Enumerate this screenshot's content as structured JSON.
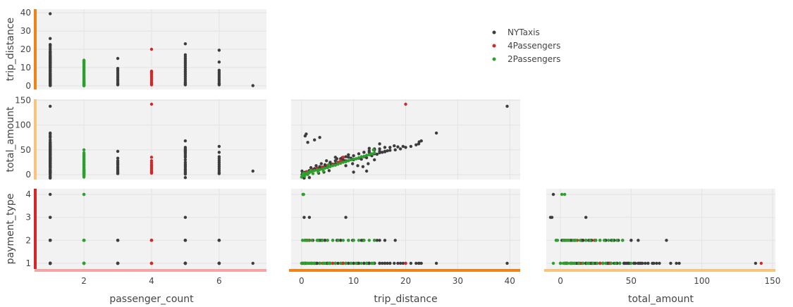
{
  "chart_data": {
    "type": "scatter",
    "title": "",
    "legend": {
      "placement": "top-right",
      "entries": [
        {
          "name": "NYTaxis",
          "color": "#3d3d3d"
        },
        {
          "name": "4Passengers",
          "color": "#d62728"
        },
        {
          "name": "2Passengers",
          "color": "#2ca02c"
        }
      ]
    },
    "dimensions": [
      {
        "key": "passenger_count",
        "label": "passenger_count",
        "range": [
          0.6,
          7.4
        ],
        "ticks": [
          2,
          4,
          6
        ],
        "bar_color": "#f4a6a6"
      },
      {
        "key": "trip_distance",
        "label": "trip_distance",
        "range": [
          -2,
          42
        ],
        "ticks": [
          0,
          10,
          20,
          30,
          40
        ],
        "bar_color": "#ee8417"
      },
      {
        "key": "total_amount",
        "label": "total_amount",
        "range": [
          -10,
          152
        ],
        "ticks": [
          0,
          50,
          100,
          150
        ],
        "bar_color": "#f6c47c"
      },
      {
        "key": "payment_type",
        "label": "payment_type",
        "range": [
          0.75,
          4.25
        ],
        "ticks": [
          1,
          2,
          3,
          4
        ],
        "bar_color": "#d62728"
      }
    ],
    "series": [
      {
        "name": "NYTaxis",
        "color": "#3d3d3d",
        "points": [
          [
            1,
            0.2,
            3,
            1
          ],
          [
            1,
            0.8,
            5,
            1
          ],
          [
            1,
            1.5,
            8,
            1
          ],
          [
            1,
            2.2,
            10,
            2
          ],
          [
            1,
            3,
            13,
            1
          ],
          [
            1,
            4,
            15,
            2
          ],
          [
            1,
            5,
            18,
            1
          ],
          [
            1,
            6,
            21,
            2
          ],
          [
            1,
            7,
            23,
            1
          ],
          [
            1,
            8,
            26,
            1
          ],
          [
            1,
            9,
            28,
            2
          ],
          [
            1,
            10,
            30,
            1
          ],
          [
            1,
            11,
            33,
            1
          ],
          [
            1,
            12,
            36,
            2
          ],
          [
            1,
            13,
            40,
            1
          ],
          [
            1,
            14,
            42,
            1
          ],
          [
            1,
            15,
            44,
            2
          ],
          [
            1,
            16,
            46,
            1
          ],
          [
            1,
            17,
            49,
            1
          ],
          [
            1,
            18,
            50,
            2
          ],
          [
            1,
            19,
            52,
            1
          ],
          [
            1,
            20,
            55,
            1
          ],
          [
            1,
            21,
            57,
            1
          ],
          [
            1,
            22,
            60,
            1
          ],
          [
            1,
            0.5,
            -7,
            3
          ],
          [
            1,
            0.3,
            -5,
            4
          ],
          [
            1,
            1.2,
            65,
            1
          ],
          [
            1,
            2.5,
            70,
            1
          ],
          [
            1,
            3.5,
            75,
            2
          ],
          [
            1,
            39.5,
            138,
            1
          ],
          [
            1,
            0.9,
            82,
            1
          ],
          [
            1,
            0.7,
            78,
            1
          ],
          [
            1,
            6.5,
            35,
            1
          ],
          [
            1,
            8.5,
            18,
            3
          ],
          [
            1,
            5.5,
            25,
            1
          ],
          [
            3,
            0.5,
            4,
            1
          ],
          [
            3,
            1.5,
            7,
            2
          ],
          [
            3,
            2.5,
            10,
            1
          ],
          [
            3,
            3.5,
            13,
            1
          ],
          [
            3,
            4.5,
            16,
            2
          ],
          [
            3,
            5.5,
            20,
            1
          ],
          [
            3,
            6.5,
            22,
            1
          ],
          [
            3,
            7.5,
            25,
            2
          ],
          [
            3,
            8.5,
            28,
            1
          ],
          [
            3,
            9.5,
            33,
            1
          ],
          [
            3,
            15,
            47,
            1
          ],
          [
            3,
            0.8,
            2,
            2
          ],
          [
            5,
            0.5,
            3,
            1
          ],
          [
            5,
            1,
            5,
            2
          ],
          [
            5,
            2,
            8,
            1
          ],
          [
            5,
            3,
            11,
            1
          ],
          [
            5,
            4,
            15,
            2
          ],
          [
            5,
            5,
            18,
            1
          ],
          [
            5,
            6,
            21,
            1
          ],
          [
            5,
            7,
            25,
            2
          ],
          [
            5,
            8,
            30,
            1
          ],
          [
            5,
            9,
            35,
            1
          ],
          [
            5,
            10,
            38,
            2
          ],
          [
            5,
            11,
            42,
            1
          ],
          [
            5,
            12,
            45,
            1
          ],
          [
            5,
            13,
            48,
            1
          ],
          [
            5,
            14,
            50,
            2
          ],
          [
            5,
            15,
            52,
            1
          ],
          [
            5,
            16,
            47,
            1
          ],
          [
            5,
            17,
            55,
            1
          ],
          [
            5,
            23,
            68,
            1
          ],
          [
            5,
            1.5,
            -6,
            3
          ],
          [
            5,
            0.7,
            1,
            2
          ],
          [
            6,
            0.5,
            4,
            1
          ],
          [
            6,
            1.5,
            8,
            2
          ],
          [
            6,
            2.5,
            12,
            1
          ],
          [
            6,
            3.5,
            16,
            1
          ],
          [
            6,
            4.5,
            20,
            2
          ],
          [
            6,
            5.5,
            24,
            1
          ],
          [
            6,
            6.5,
            28,
            1
          ],
          [
            6,
            7.5,
            32,
            2
          ],
          [
            6,
            8.5,
            36,
            1
          ],
          [
            6,
            13,
            45,
            1
          ],
          [
            6,
            19.5,
            57,
            1
          ],
          [
            6,
            1,
            2,
            2
          ],
          [
            7,
            0.1,
            7,
            1
          ],
          [
            1,
            10.5,
            32,
            1
          ],
          [
            1,
            11.5,
            31,
            2
          ],
          [
            1,
            12.5,
            34,
            1
          ],
          [
            1,
            13.5,
            38,
            1
          ],
          [
            1,
            14.5,
            41,
            2
          ],
          [
            1,
            15.5,
            45,
            1
          ],
          [
            1,
            16.5,
            48,
            1
          ],
          [
            1,
            9.8,
            22,
            2
          ],
          [
            1,
            10.8,
            18,
            1
          ],
          [
            1,
            11.8,
            16,
            2
          ],
          [
            1,
            12.8,
            22,
            1
          ],
          [
            1,
            14,
            30,
            1
          ],
          [
            1,
            4.8,
            28,
            1
          ],
          [
            1,
            3.8,
            22,
            2
          ],
          [
            1,
            2.8,
            18,
            1
          ],
          [
            1,
            1.8,
            14,
            1
          ],
          [
            1,
            6.8,
            32,
            2
          ],
          [
            1,
            7.8,
            34,
            1
          ],
          [
            1,
            18.5,
            56,
            1
          ],
          [
            1,
            25.9,
            84,
            1
          ],
          [
            1,
            22.5,
            62,
            1
          ],
          [
            1,
            22.6,
            66,
            1
          ],
          [
            1,
            17.8,
            58,
            1
          ],
          [
            1,
            15,
            62,
            1
          ],
          [
            1,
            10,
            5,
            1
          ],
          [
            1,
            12.5,
            7,
            1
          ],
          [
            1,
            3.3,
            3,
            2
          ],
          [
            1,
            4.3,
            5,
            1
          ],
          [
            1,
            5.3,
            8,
            1
          ],
          [
            1,
            13,
            53,
            1
          ],
          [
            1,
            12,
            45,
            1
          ],
          [
            1,
            14,
            52,
            1
          ],
          [
            1,
            0.1,
            0,
            1
          ],
          [
            1,
            0.2,
            -3,
            2
          ],
          [
            1,
            16,
            55,
            2
          ],
          [
            1,
            9,
            40,
            1
          ]
        ]
      },
      {
        "name": "4Passengers",
        "color": "#d62728",
        "points": [
          [
            4,
            0.5,
            3,
            1
          ],
          [
            4,
            1,
            6,
            2
          ],
          [
            4,
            2,
            9,
            1
          ],
          [
            4,
            3,
            12,
            2
          ],
          [
            4,
            4,
            15,
            1
          ],
          [
            4,
            5,
            18,
            2
          ],
          [
            4,
            6,
            20,
            1
          ],
          [
            4,
            7,
            24,
            2
          ],
          [
            4,
            7.5,
            28,
            1
          ],
          [
            4,
            8,
            35,
            1
          ],
          [
            4,
            20,
            142,
            1
          ],
          [
            4,
            1.5,
            4,
            2
          ]
        ]
      },
      {
        "name": "2Passengers",
        "color": "#2ca02c",
        "points": [
          [
            2,
            0,
            -5,
            1
          ],
          [
            2,
            0.2,
            -2,
            2
          ],
          [
            2,
            0.5,
            0,
            1
          ],
          [
            2,
            0.8,
            2,
            2
          ],
          [
            2,
            1,
            3,
            1
          ],
          [
            2,
            1.3,
            4,
            2
          ],
          [
            2,
            1.6,
            5,
            1
          ],
          [
            2,
            2,
            6,
            2
          ],
          [
            2,
            2.5,
            8,
            1
          ],
          [
            2,
            3,
            9,
            2
          ],
          [
            2,
            3.5,
            10,
            1
          ],
          [
            2,
            4,
            11,
            2
          ],
          [
            2,
            4.5,
            13,
            1
          ],
          [
            2,
            5,
            14,
            2
          ],
          [
            2,
            5.5,
            16,
            1
          ],
          [
            2,
            6,
            18,
            2
          ],
          [
            2,
            6.5,
            19,
            1
          ],
          [
            2,
            7,
            21,
            2
          ],
          [
            2,
            7.5,
            23,
            1
          ],
          [
            2,
            8,
            25,
            2
          ],
          [
            2,
            8.5,
            26,
            1
          ],
          [
            2,
            9,
            28,
            2
          ],
          [
            2,
            9.5,
            30,
            1
          ],
          [
            2,
            10,
            31,
            2
          ],
          [
            2,
            10.5,
            32,
            1
          ],
          [
            2,
            11,
            34,
            2
          ],
          [
            2,
            11.5,
            36,
            1
          ],
          [
            2,
            12,
            37,
            2
          ],
          [
            2,
            12.5,
            39,
            1
          ],
          [
            2,
            13,
            40,
            2
          ],
          [
            2,
            13.5,
            42,
            1
          ],
          [
            2,
            14,
            44,
            2
          ],
          [
            2,
            0.3,
            1,
            4
          ],
          [
            2,
            0.4,
            3,
            4
          ],
          [
            2,
            1.2,
            0,
            1
          ],
          [
            2,
            2.2,
            2,
            1
          ],
          [
            2,
            3.2,
            5,
            2
          ],
          [
            2,
            4.2,
            7,
            1
          ],
          [
            2,
            0.6,
            -3,
            2
          ],
          [
            2,
            1.8,
            8,
            1
          ],
          [
            2,
            13.8,
            50,
            1
          ],
          [
            2,
            5.2,
            20,
            1
          ]
        ]
      }
    ]
  }
}
